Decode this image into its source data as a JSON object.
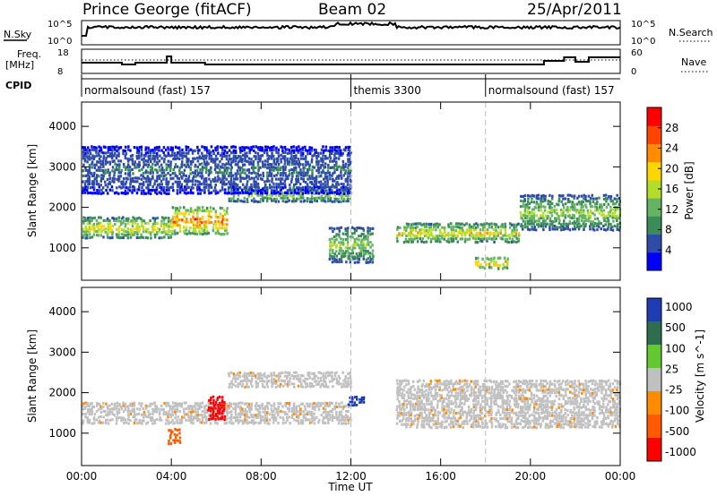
{
  "header": {
    "station": "Prince George (fitACF)",
    "beam": "Beam 02",
    "date": "25/Apr/2011"
  },
  "left_labels": {
    "nsky": "N.Sky",
    "nsky_top": "10^5",
    "nsky_bottom": "10^0",
    "freq_line1": "Freq.",
    "freq_line2": "[MHz]",
    "freq_top": "18",
    "freq_bottom": "8",
    "cpid": "CPID"
  },
  "right_labels": {
    "nsearch_top": "10^5",
    "nsearch_bottom": "10^0",
    "nsearch": "N.Search",
    "nave_top": "60",
    "nave_bottom": "0",
    "nave": "Nave"
  },
  "cpid_segments": [
    {
      "label": "normalsound (fast) 157",
      "start_hour": 0
    },
    {
      "label": "themis 3300",
      "start_hour": 12
    },
    {
      "label": "normalsound (fast) 157",
      "start_hour": 18
    }
  ],
  "colors": {
    "power_scale": [
      "#0000ff",
      "#2e4ba8",
      "#3c8c5a",
      "#64b464",
      "#b4dc28",
      "#ffd700",
      "#ff8c00",
      "#ff4500",
      "#ff0000"
    ],
    "velocity_scale": [
      "#1e3cb4",
      "#2e6e4e",
      "#64c832",
      "#c0c0c0",
      "#ff8c00",
      "#ff5a00",
      "#ff0000"
    ]
  },
  "chart_data": [
    {
      "type": "heatmap",
      "name": "power",
      "ylabel": "Slant Range [km]",
      "xlim": [
        0,
        24
      ],
      "ylim": [
        200,
        4600
      ],
      "yticks": [
        1000,
        2000,
        3000,
        4000
      ],
      "colorbar": {
        "label": "Power [dB]",
        "range": [
          0,
          32
        ],
        "ticks": [
          4,
          8,
          12,
          16,
          20,
          24,
          28
        ]
      },
      "echo_bands": [
        {
          "t0": 0,
          "t1": 4.0,
          "r0": 1200,
          "r1": 1750,
          "peak_dB": 20
        },
        {
          "t0": 4.0,
          "t1": 6.5,
          "r0": 1300,
          "r1": 2000,
          "peak_dB": 28
        },
        {
          "t0": 6.5,
          "t1": 12.0,
          "r0": 2100,
          "r1": 2500,
          "peak_dB": 16
        },
        {
          "t0": 0,
          "t1": 12.0,
          "r0": 2300,
          "r1": 3500,
          "peak_dB": 8
        },
        {
          "t0": 11.0,
          "t1": 13.0,
          "r0": 600,
          "r1": 1500,
          "peak_dB": 16
        },
        {
          "t0": 14.0,
          "t1": 19.5,
          "r0": 1100,
          "r1": 1600,
          "peak_dB": 20
        },
        {
          "t0": 17.5,
          "t1": 19.0,
          "r0": 450,
          "r1": 750,
          "peak_dB": 24
        },
        {
          "t0": 19.5,
          "t1": 24.0,
          "r0": 1400,
          "r1": 2300,
          "peak_dB": 16
        }
      ]
    },
    {
      "type": "heatmap",
      "name": "velocity",
      "ylabel": "Slant Range [km]",
      "xlabel": "Time UT",
      "xlim": [
        0,
        24
      ],
      "ylim": [
        200,
        4600
      ],
      "yticks": [
        1000,
        2000,
        3000,
        4000
      ],
      "xticks": [
        "00:00",
        "04:00",
        "08:00",
        "12:00",
        "16:00",
        "20:00",
        "00:00"
      ],
      "colorbar": {
        "label": "Velocity [m s^-1]",
        "ticks": [
          "1000",
          "500",
          "100",
          "25",
          "-25",
          "-100",
          "-500",
          "-1000"
        ]
      },
      "echo_bands": [
        {
          "t0": 0,
          "t1": 12.0,
          "r0": 1200,
          "r1": 1750,
          "velocity": 0
        },
        {
          "t0": 3.8,
          "t1": 4.4,
          "r0": 700,
          "r1": 1100,
          "velocity": -400
        },
        {
          "t0": 5.6,
          "t1": 6.4,
          "r0": 1300,
          "r1": 1900,
          "velocity": -700
        },
        {
          "t0": 6.5,
          "t1": 12.0,
          "r0": 2100,
          "r1": 2500,
          "velocity": 0
        },
        {
          "t0": 11.8,
          "t1": 12.6,
          "r0": 1650,
          "r1": 1900,
          "velocity": 700
        },
        {
          "t0": 14.0,
          "t1": 24.0,
          "r0": 1100,
          "r1": 2300,
          "velocity": 0
        }
      ]
    }
  ]
}
